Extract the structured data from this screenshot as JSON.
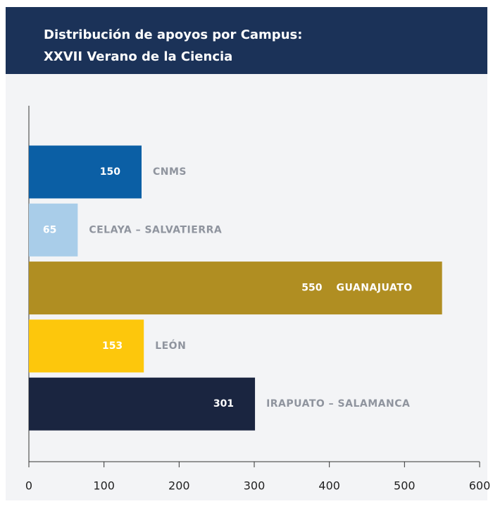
{
  "chart_data": {
    "type": "barh",
    "title": [
      "Distribución de apoyos por Campus:",
      "XXVII Verano de la Ciencia"
    ],
    "categories": [
      "CNMS",
      "CELAYA – SALVATIERRA",
      "GUANAJUATO",
      "LEÓN",
      "IRAPUATO – SALAMANCA"
    ],
    "values": [
      150,
      65,
      550,
      153,
      301
    ],
    "colors": [
      "#0b5fa5",
      "#a9cde9",
      "#b08e22",
      "#fdc70c",
      "#1a2540"
    ],
    "xlim": [
      0,
      600
    ],
    "xticks": [
      0,
      100,
      200,
      300,
      400,
      500,
      600
    ]
  }
}
